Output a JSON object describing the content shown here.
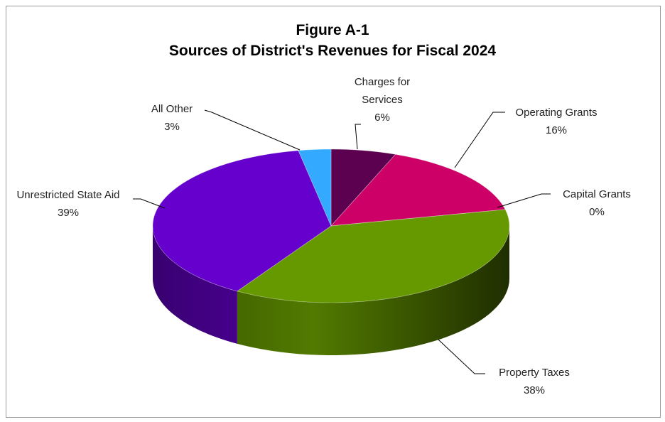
{
  "chart_data": {
    "type": "pie3d",
    "title": "Figure A-1",
    "subtitle": "Sources of District's Revenues for Fiscal 2024",
    "categories": [
      "Charges for Services",
      "Operating Grants",
      "Capital Grants",
      "Property Taxes",
      "Unrestricted State Aid",
      "All Other"
    ],
    "values": [
      6,
      16,
      0,
      38,
      39,
      3
    ],
    "value_labels": [
      "6%",
      "16%",
      "0%",
      "38%",
      "39%",
      "3%"
    ],
    "colors": [
      "#5c0050",
      "#cc0066",
      "#ff9900",
      "#669900",
      "#6600cc",
      "#33aaff"
    ]
  }
}
